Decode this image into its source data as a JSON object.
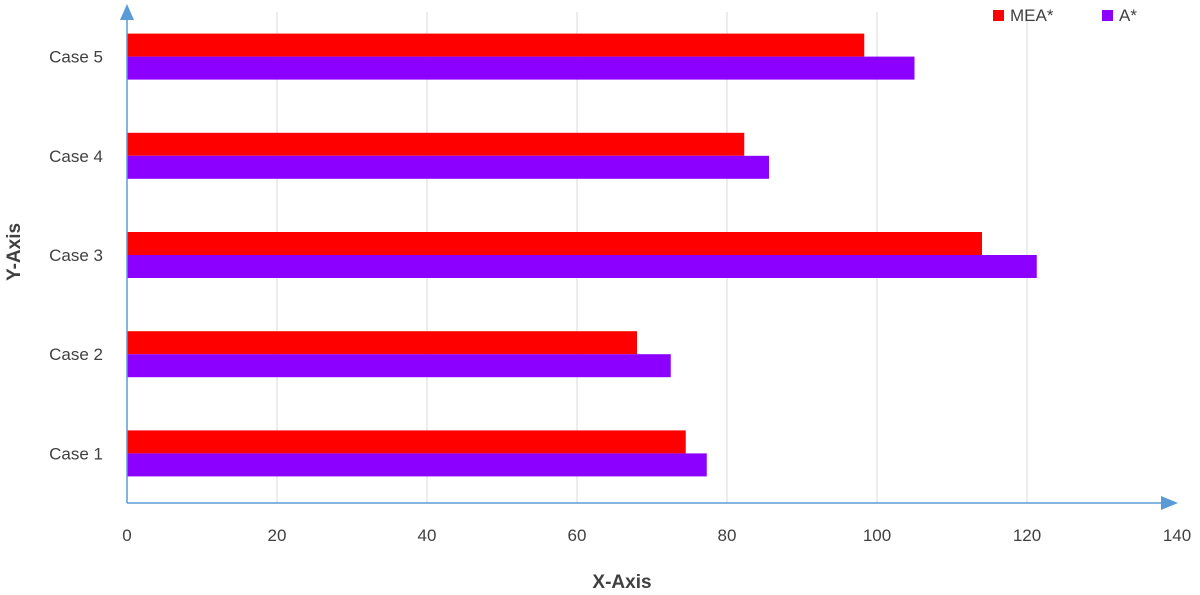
{
  "chart_data": {
    "type": "bar",
    "orientation": "horizontal",
    "categories": [
      "Case 1",
      "Case 2",
      "Case 3",
      "Case 4",
      "Case 5"
    ],
    "series": [
      {
        "name": "MEA*",
        "color": "#ff0000",
        "values": [
          74.5,
          68,
          114,
          82.3,
          98.3
        ]
      },
      {
        "name": "A*",
        "color": "#8b00ff",
        "values": [
          77.3,
          72.5,
          121.3,
          85.6,
          105
        ]
      }
    ],
    "xlabel": "X-Axis",
    "ylabel": "Y-Axis",
    "xlim": [
      0,
      140
    ],
    "xticks": [
      "0",
      "20",
      "40",
      "60",
      "80",
      "100",
      "120",
      "140"
    ],
    "grid": "vertical",
    "legend": "top-right",
    "axis_color": "#5b9bd5"
  }
}
